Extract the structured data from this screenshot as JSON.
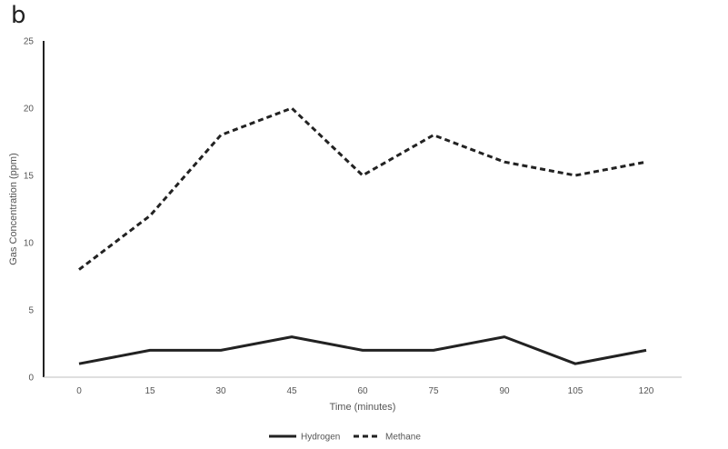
{
  "panel_label": "b",
  "chart_data": {
    "type": "line",
    "title": "",
    "xlabel": "Time (minutes)",
    "ylabel": "Gas Concentration (ppm)",
    "categories": [
      "0",
      "15",
      "30",
      "45",
      "60",
      "75",
      "90",
      "105",
      "120"
    ],
    "ylim": [
      0,
      25
    ],
    "yticks": [
      0,
      5,
      10,
      15,
      20,
      25
    ],
    "grid": false,
    "legend_position": "bottom",
    "series": [
      {
        "name": "Hydrogen",
        "values": [
          1,
          2,
          2,
          3,
          2,
          2,
          3,
          1,
          2
        ],
        "style": "solid",
        "color": "#222222"
      },
      {
        "name": "Methane",
        "values": [
          8,
          12,
          18,
          20,
          15,
          18,
          16,
          15,
          16
        ],
        "style": "dashed",
        "color": "#222222"
      }
    ]
  }
}
